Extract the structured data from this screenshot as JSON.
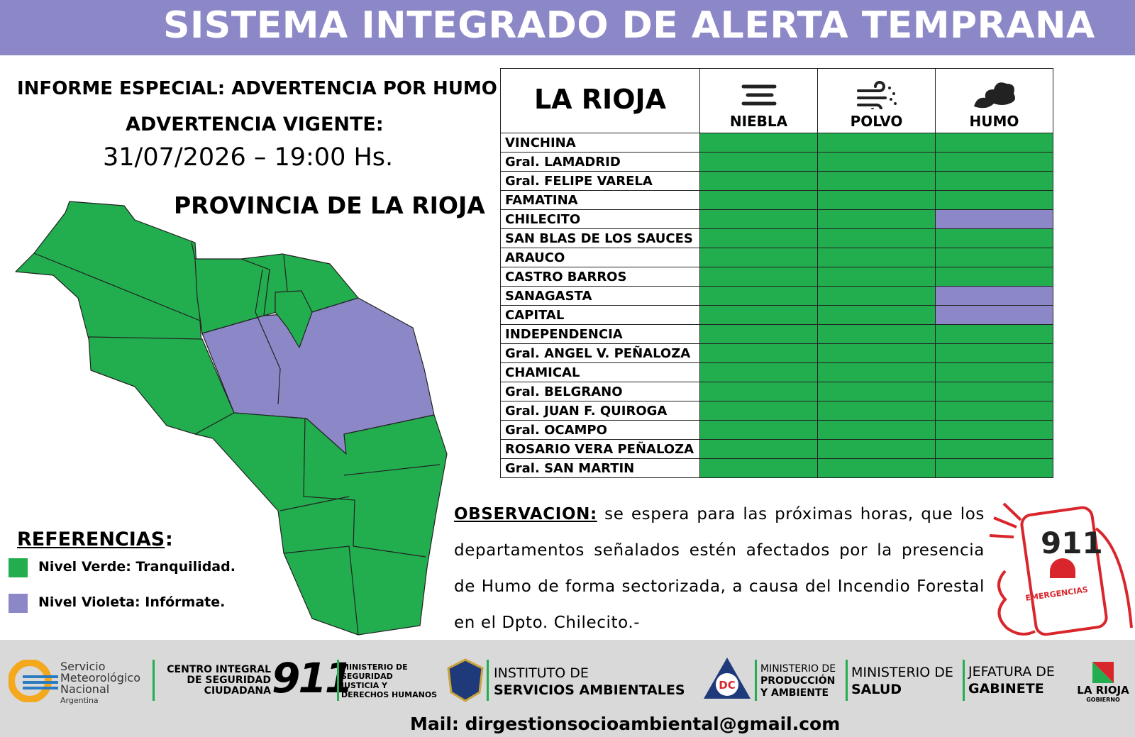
{
  "header": {
    "title": "SISTEMA INTEGRADO DE ALERTA TEMPRANA"
  },
  "report": {
    "title": "INFORME ESPECIAL: ADVERTENCIA POR HUMO",
    "subtitle": "ADVERTENCIA VIGENTE:",
    "datetime": "31/07/2026 – 19:00 Hs.",
    "map_title": "PROVINCIA DE LA RIOJA"
  },
  "table": {
    "title": "LA RIOJA",
    "columns": [
      "NIEBLA",
      "POLVO",
      "HUMO"
    ],
    "rows": [
      {
        "name": "VINCHINA",
        "colors": [
          "#22ad4f",
          "#22ad4f",
          "#22ad4f"
        ]
      },
      {
        "name": "Gral. LAMADRID",
        "colors": [
          "#22ad4f",
          "#22ad4f",
          "#22ad4f"
        ]
      },
      {
        "name": "Gral. FELIPE VARELA",
        "colors": [
          "#22ad4f",
          "#22ad4f",
          "#22ad4f"
        ]
      },
      {
        "name": "FAMATINA",
        "colors": [
          "#22ad4f",
          "#22ad4f",
          "#22ad4f"
        ]
      },
      {
        "name": "CHILECITO",
        "colors": [
          "#22ad4f",
          "#22ad4f",
          "#8c88c8"
        ]
      },
      {
        "name": "SAN BLAS DE LOS SAUCES",
        "colors": [
          "#22ad4f",
          "#22ad4f",
          "#22ad4f"
        ]
      },
      {
        "name": "ARAUCO",
        "colors": [
          "#22ad4f",
          "#22ad4f",
          "#22ad4f"
        ]
      },
      {
        "name": "CASTRO BARROS",
        "colors": [
          "#22ad4f",
          "#22ad4f",
          "#22ad4f"
        ]
      },
      {
        "name": "SANAGASTA",
        "colors": [
          "#22ad4f",
          "#22ad4f",
          "#8c88c8"
        ]
      },
      {
        "name": "CAPITAL",
        "colors": [
          "#22ad4f",
          "#22ad4f",
          "#8c88c8"
        ]
      },
      {
        "name": "INDEPENDENCIA",
        "colors": [
          "#22ad4f",
          "#22ad4f",
          "#22ad4f"
        ]
      },
      {
        "name": "Gral. ANGEL V. PEÑALOZA",
        "colors": [
          "#22ad4f",
          "#22ad4f",
          "#22ad4f"
        ]
      },
      {
        "name": "CHAMICAL",
        "colors": [
          "#22ad4f",
          "#22ad4f",
          "#22ad4f"
        ]
      },
      {
        "name": "Gral. BELGRANO",
        "colors": [
          "#22ad4f",
          "#22ad4f",
          "#22ad4f"
        ]
      },
      {
        "name": "Gral. JUAN F. QUIROGA",
        "colors": [
          "#22ad4f",
          "#22ad4f",
          "#22ad4f"
        ]
      },
      {
        "name": "Gral. OCAMPO",
        "colors": [
          "#22ad4f",
          "#22ad4f",
          "#22ad4f"
        ]
      },
      {
        "name": "ROSARIO VERA PEÑALOZA",
        "colors": [
          "#22ad4f",
          "#22ad4f",
          "#22ad4f"
        ]
      },
      {
        "name": "Gral. SAN MARTIN",
        "colors": [
          "#22ad4f",
          "#22ad4f",
          "#22ad4f"
        ]
      }
    ]
  },
  "legend": {
    "title": "REFERENCIAS",
    "items": [
      {
        "label": "Nivel Verde: Tranquilidad.",
        "color": "#22ad4f"
      },
      {
        "label": "Nivel Violeta: Infórmate.",
        "color": "#8c88c8"
      }
    ]
  },
  "observation": {
    "label": "OBSERVACION:",
    "text": "se espera para las próximas horas, que los departamentos señalados estén afectados por la presencia de Humo de forma sectorizada, a causa del Incendio Forestal en el Dpto. Chilecito.-"
  },
  "phone": {
    "number": "911",
    "caption": "EMERGENCIAS"
  },
  "footer": {
    "smn": [
      "Servicio",
      "Meteorológico",
      "Nacional",
      "Argentina"
    ],
    "cisc": [
      "CENTRO INTEGRAL",
      "DE SEGURIDAD",
      "CIUDADANA"
    ],
    "cisc_number": "911",
    "min_seg": [
      "MINISTERIO DE",
      "SEGURIDAD",
      "JUSTICIA Y",
      "DERECHOS HUMANOS"
    ],
    "isa": [
      "INSTITUTO DE",
      "SERVICIOS AMBIENTALES"
    ],
    "dc": "DC",
    "min_prod": [
      "MINISTERIO DE",
      "PRODUCCIÓN",
      "Y AMBIENTE"
    ],
    "min_salud": [
      "MINISTERIO DE",
      "SALUD"
    ],
    "jefatura": [
      "JEFATURA DE",
      "GABINETE"
    ],
    "gob": [
      "LA RIOJA",
      "GOBIERNO"
    ],
    "mail": "Mail: dirgestionsocioambiental@gmail.com"
  }
}
